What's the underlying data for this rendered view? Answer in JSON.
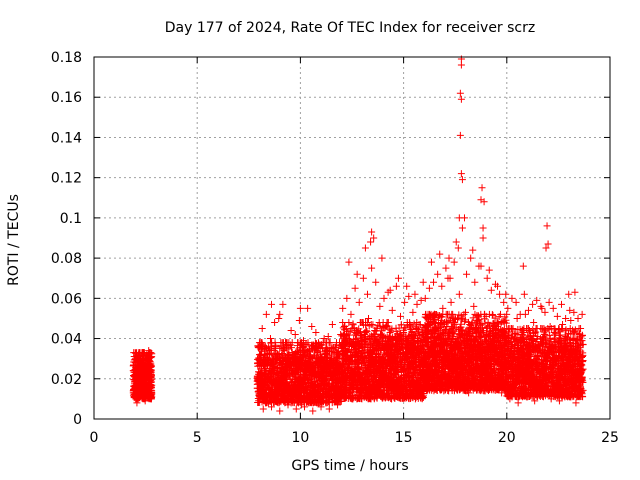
{
  "chart_data": {
    "type": "scatter",
    "title": "Day 177 of 2024, Rate Of TEC Index for receiver scrz",
    "xlabel": "GPS time / hours",
    "ylabel": "ROTI / TECUs",
    "xlim": [
      0,
      25
    ],
    "ylim": [
      0,
      0.18
    ],
    "xticks": [
      0,
      5,
      10,
      15,
      20,
      25
    ],
    "xtick_labels": [
      "0",
      "5",
      "10",
      "15",
      "20",
      "25"
    ],
    "yticks": [
      0,
      0.02,
      0.04,
      0.06,
      0.08,
      0.1,
      0.12,
      0.14,
      0.16,
      0.18
    ],
    "ytick_labels": [
      "0",
      "0.02",
      "0.04",
      "0.06",
      "0.08",
      "0.1",
      "0.12",
      "0.14",
      "0.16",
      "0.18"
    ],
    "grid": true,
    "marker": "+",
    "series": [
      {
        "name": "ROTI",
        "color": "#ff0000",
        "x": [
          1.95,
          2.0,
          2.05,
          2.1,
          2.15,
          2.2,
          2.25,
          2.3,
          2.35,
          2.4,
          2.45,
          2.5,
          2.55,
          2.6,
          2.65,
          2.7,
          2.75,
          2.02,
          2.12,
          2.22,
          2.32,
          2.42,
          2.52,
          2.62,
          2.72,
          2.08,
          2.28,
          2.48,
          2.68,
          2.18,
          2.38,
          2.58,
          2.05,
          2.35,
          2.65,
          2.15,
          2.45,
          2.75,
          2.25,
          2.55,
          8.0,
          8.1,
          8.2,
          8.3,
          8.4,
          8.5,
          8.6,
          8.7,
          8.8,
          8.9,
          9.0,
          9.1,
          9.2,
          9.3,
          9.4,
          9.5,
          9.6,
          9.7,
          9.8,
          9.9,
          10.0,
          10.1,
          10.2,
          10.3,
          10.4,
          10.5,
          10.6,
          10.7,
          10.8,
          10.9,
          11.0,
          11.1,
          11.2,
          11.3,
          11.4,
          11.5,
          11.6,
          11.7,
          11.8,
          11.9,
          8.05,
          8.25,
          8.45,
          8.65,
          8.85,
          9.05,
          9.25,
          9.45,
          9.65,
          9.85,
          10.05,
          10.25,
          10.45,
          10.65,
          10.85,
          11.05,
          11.25,
          11.45,
          11.65,
          11.85,
          8.15,
          8.55,
          8.95,
          9.35,
          9.75,
          10.15,
          10.55,
          10.95,
          11.35,
          11.75,
          8.35,
          8.75,
          9.15,
          9.55,
          9.95,
          10.35,
          10.75,
          11.15,
          11.55,
          11.95,
          8.2,
          8.6,
          9.0,
          9.4,
          9.8,
          10.2,
          10.6,
          11.0,
          11.4,
          11.8,
          12.0,
          12.1,
          12.2,
          12.3,
          12.4,
          12.5,
          12.6,
          12.7,
          12.8,
          12.9,
          13.0,
          13.1,
          13.2,
          13.3,
          13.4,
          13.5,
          13.6,
          13.7,
          13.8,
          13.9,
          14.0,
          14.1,
          14.2,
          14.3,
          14.4,
          14.5,
          14.6,
          14.7,
          14.8,
          14.9,
          15.0,
          15.1,
          15.2,
          15.3,
          15.4,
          15.5,
          15.6,
          15.7,
          15.8,
          15.9,
          12.05,
          12.25,
          12.45,
          12.65,
          12.85,
          13.05,
          13.25,
          13.45,
          13.65,
          13.85,
          14.05,
          14.25,
          14.45,
          14.65,
          14.85,
          15.05,
          15.25,
          15.45,
          15.65,
          15.85,
          12.15,
          12.55,
          12.95,
          13.35,
          13.75,
          14.15,
          14.55,
          14.95,
          15.35,
          15.75,
          12.35,
          12.75,
          13.15,
          13.55,
          13.95,
          14.35,
          14.75,
          15.15,
          15.55,
          15.95,
          12.2,
          12.6,
          13.0,
          13.4,
          13.8,
          14.2,
          14.6,
          15.0,
          15.4,
          15.8,
          16.0,
          16.1,
          16.2,
          16.3,
          16.4,
          16.5,
          16.6,
          16.7,
          16.8,
          16.9,
          17.0,
          17.1,
          17.2,
          17.3,
          17.4,
          17.5,
          17.6,
          17.7,
          17.8,
          17.9,
          18.0,
          18.1,
          18.2,
          18.3,
          18.4,
          18.5,
          18.6,
          18.7,
          18.8,
          18.9,
          19.0,
          19.1,
          19.2,
          19.3,
          19.4,
          19.5,
          19.6,
          19.7,
          19.8,
          19.9,
          16.05,
          16.25,
          16.45,
          16.65,
          16.85,
          17.05,
          17.25,
          17.45,
          17.65,
          17.85,
          18.05,
          18.25,
          18.45,
          18.65,
          18.85,
          19.05,
          19.25,
          19.45,
          19.65,
          19.85,
          16.15,
          16.55,
          16.95,
          17.35,
          17.75,
          18.15,
          18.55,
          18.95,
          19.35,
          19.75,
          16.35,
          16.75,
          17.15,
          17.55,
          17.95,
          18.35,
          18.75,
          19.15,
          19.55,
          19.95,
          16.2,
          16.6,
          17.0,
          17.4,
          17.8,
          18.2,
          18.6,
          19.0,
          19.4,
          19.8,
          20.0,
          20.1,
          20.2,
          20.3,
          20.4,
          20.5,
          20.6,
          20.7,
          20.8,
          20.9,
          21.0,
          21.1,
          21.2,
          21.3,
          21.4,
          21.5,
          21.6,
          21.7,
          21.8,
          21.9,
          22.0,
          22.1,
          22.2,
          22.3,
          22.4,
          22.5,
          22.6,
          22.7,
          22.8,
          22.9,
          23.0,
          23.1,
          23.2,
          23.3,
          23.4,
          23.5,
          23.6,
          23.7,
          20.05,
          20.25,
          20.45,
          20.65,
          20.85,
          21.05,
          21.25,
          21.45,
          21.65,
          21.85,
          22.05,
          22.25,
          22.45,
          22.65,
          22.85,
          23.05,
          23.25,
          23.45,
          23.65,
          20.15,
          20.55,
          20.95,
          21.35,
          21.75,
          22.15,
          22.55,
          22.95,
          23.35,
          20.35,
          20.75,
          21.15,
          21.55,
          21.95,
          22.35,
          22.75,
          23.15,
          23.55,
          17.8,
          17.8,
          17.75,
          17.8,
          17.75,
          17.8,
          17.85,
          17.7,
          18.8,
          18.75,
          18.9,
          18.85,
          21.95,
          22.0,
          21.9,
          13.45,
          13.4,
          17.2,
          20.8,
          23.0,
          10.0,
          9.0,
          8.6,
          23.3
        ],
        "y": [
          0.021,
          0.028,
          0.015,
          0.025,
          0.019,
          0.031,
          0.012,
          0.024,
          0.027,
          0.018,
          0.022,
          0.03,
          0.016,
          0.026,
          0.02,
          0.033,
          0.017,
          0.01,
          0.014,
          0.029,
          0.011,
          0.023,
          0.013,
          0.032,
          0.019,
          0.008,
          0.026,
          0.009,
          0.021,
          0.017,
          0.028,
          0.012,
          0.024,
          0.015,
          0.034,
          0.022,
          0.018,
          0.027,
          0.03,
          0.014,
          0.018,
          0.025,
          0.012,
          0.032,
          0.02,
          0.015,
          0.028,
          0.022,
          0.036,
          0.017,
          0.024,
          0.019,
          0.03,
          0.014,
          0.027,
          0.021,
          0.033,
          0.016,
          0.025,
          0.012,
          0.029,
          0.018,
          0.022,
          0.015,
          0.031,
          0.02,
          0.026,
          0.013,
          0.034,
          0.019,
          0.023,
          0.016,
          0.028,
          0.021,
          0.017,
          0.03,
          0.014,
          0.025,
          0.022,
          0.019,
          0.01,
          0.035,
          0.008,
          0.03,
          0.012,
          0.038,
          0.009,
          0.027,
          0.011,
          0.033,
          0.007,
          0.029,
          0.01,
          0.024,
          0.013,
          0.031,
          0.008,
          0.026,
          0.012,
          0.032,
          0.045,
          0.04,
          0.05,
          0.037,
          0.042,
          0.039,
          0.046,
          0.035,
          0.041,
          0.038,
          0.052,
          0.048,
          0.057,
          0.044,
          0.049,
          0.055,
          0.043,
          0.04,
          0.047,
          0.042,
          0.005,
          0.006,
          0.004,
          0.007,
          0.005,
          0.006,
          0.004,
          0.006,
          0.005,
          0.007,
          0.022,
          0.035,
          0.018,
          0.04,
          0.027,
          0.045,
          0.02,
          0.038,
          0.025,
          0.048,
          0.03,
          0.042,
          0.019,
          0.05,
          0.033,
          0.028,
          0.044,
          0.021,
          0.036,
          0.024,
          0.039,
          0.017,
          0.046,
          0.029,
          0.034,
          0.022,
          0.041,
          0.026,
          0.037,
          0.02,
          0.043,
          0.031,
          0.025,
          0.047,
          0.023,
          0.038,
          0.028,
          0.035,
          0.019,
          0.042,
          0.055,
          0.06,
          0.052,
          0.065,
          0.058,
          0.07,
          0.062,
          0.075,
          0.068,
          0.056,
          0.06,
          0.063,
          0.054,
          0.066,
          0.051,
          0.058,
          0.061,
          0.053,
          0.057,
          0.059,
          0.012,
          0.015,
          0.011,
          0.014,
          0.013,
          0.016,
          0.012,
          0.015,
          0.011,
          0.014,
          0.078,
          0.072,
          0.085,
          0.09,
          0.08,
          0.064,
          0.07,
          0.066,
          0.062,
          0.068,
          0.031,
          0.026,
          0.036,
          0.029,
          0.034,
          0.027,
          0.032,
          0.025,
          0.03,
          0.028,
          0.03,
          0.042,
          0.025,
          0.048,
          0.035,
          0.052,
          0.028,
          0.045,
          0.038,
          0.055,
          0.033,
          0.046,
          0.026,
          0.058,
          0.04,
          0.05,
          0.036,
          0.062,
          0.044,
          0.031,
          0.053,
          0.039,
          0.047,
          0.029,
          0.056,
          0.034,
          0.049,
          0.037,
          0.043,
          0.027,
          0.051,
          0.035,
          0.041,
          0.03,
          0.046,
          0.033,
          0.039,
          0.028,
          0.044,
          0.032,
          0.06,
          0.065,
          0.068,
          0.072,
          0.066,
          0.075,
          0.07,
          0.078,
          0.085,
          0.095,
          0.072,
          0.08,
          0.068,
          0.076,
          0.09,
          0.07,
          0.064,
          0.067,
          0.062,
          0.058,
          0.015,
          0.016,
          0.014,
          0.017,
          0.015,
          0.013,
          0.016,
          0.014,
          0.015,
          0.013,
          0.078,
          0.082,
          0.07,
          0.088,
          0.1,
          0.084,
          0.076,
          0.074,
          0.066,
          0.062,
          0.036,
          0.031,
          0.04,
          0.034,
          0.038,
          0.033,
          0.037,
          0.03,
          0.035,
          0.032,
          0.028,
          0.04,
          0.022,
          0.045,
          0.032,
          0.05,
          0.025,
          0.042,
          0.035,
          0.052,
          0.03,
          0.044,
          0.024,
          0.048,
          0.037,
          0.041,
          0.033,
          0.055,
          0.029,
          0.039,
          0.034,
          0.046,
          0.027,
          0.043,
          0.031,
          0.038,
          0.026,
          0.047,
          0.032,
          0.036,
          0.028,
          0.049,
          0.025,
          0.04,
          0.03,
          0.042,
          0.023,
          0.037,
          0.055,
          0.06,
          0.058,
          0.052,
          0.062,
          0.054,
          0.057,
          0.059,
          0.056,
          0.053,
          0.058,
          0.055,
          0.051,
          0.057,
          0.05,
          0.054,
          0.053,
          0.05,
          0.052,
          0.01,
          0.008,
          0.011,
          0.009,
          0.012,
          0.01,
          0.009,
          0.011,
          0.008,
          0.014,
          0.013,
          0.015,
          0.012,
          0.014,
          0.013,
          0.015,
          0.012,
          0.014,
          0.179,
          0.176,
          0.162,
          0.159,
          0.141,
          0.122,
          0.119,
          0.1,
          0.115,
          0.109,
          0.108,
          0.095,
          0.096,
          0.087,
          0.085,
          0.093,
          0.088,
          0.08,
          0.076,
          0.062,
          0.055,
          0.052,
          0.057,
          0.063
        ]
      }
    ]
  }
}
